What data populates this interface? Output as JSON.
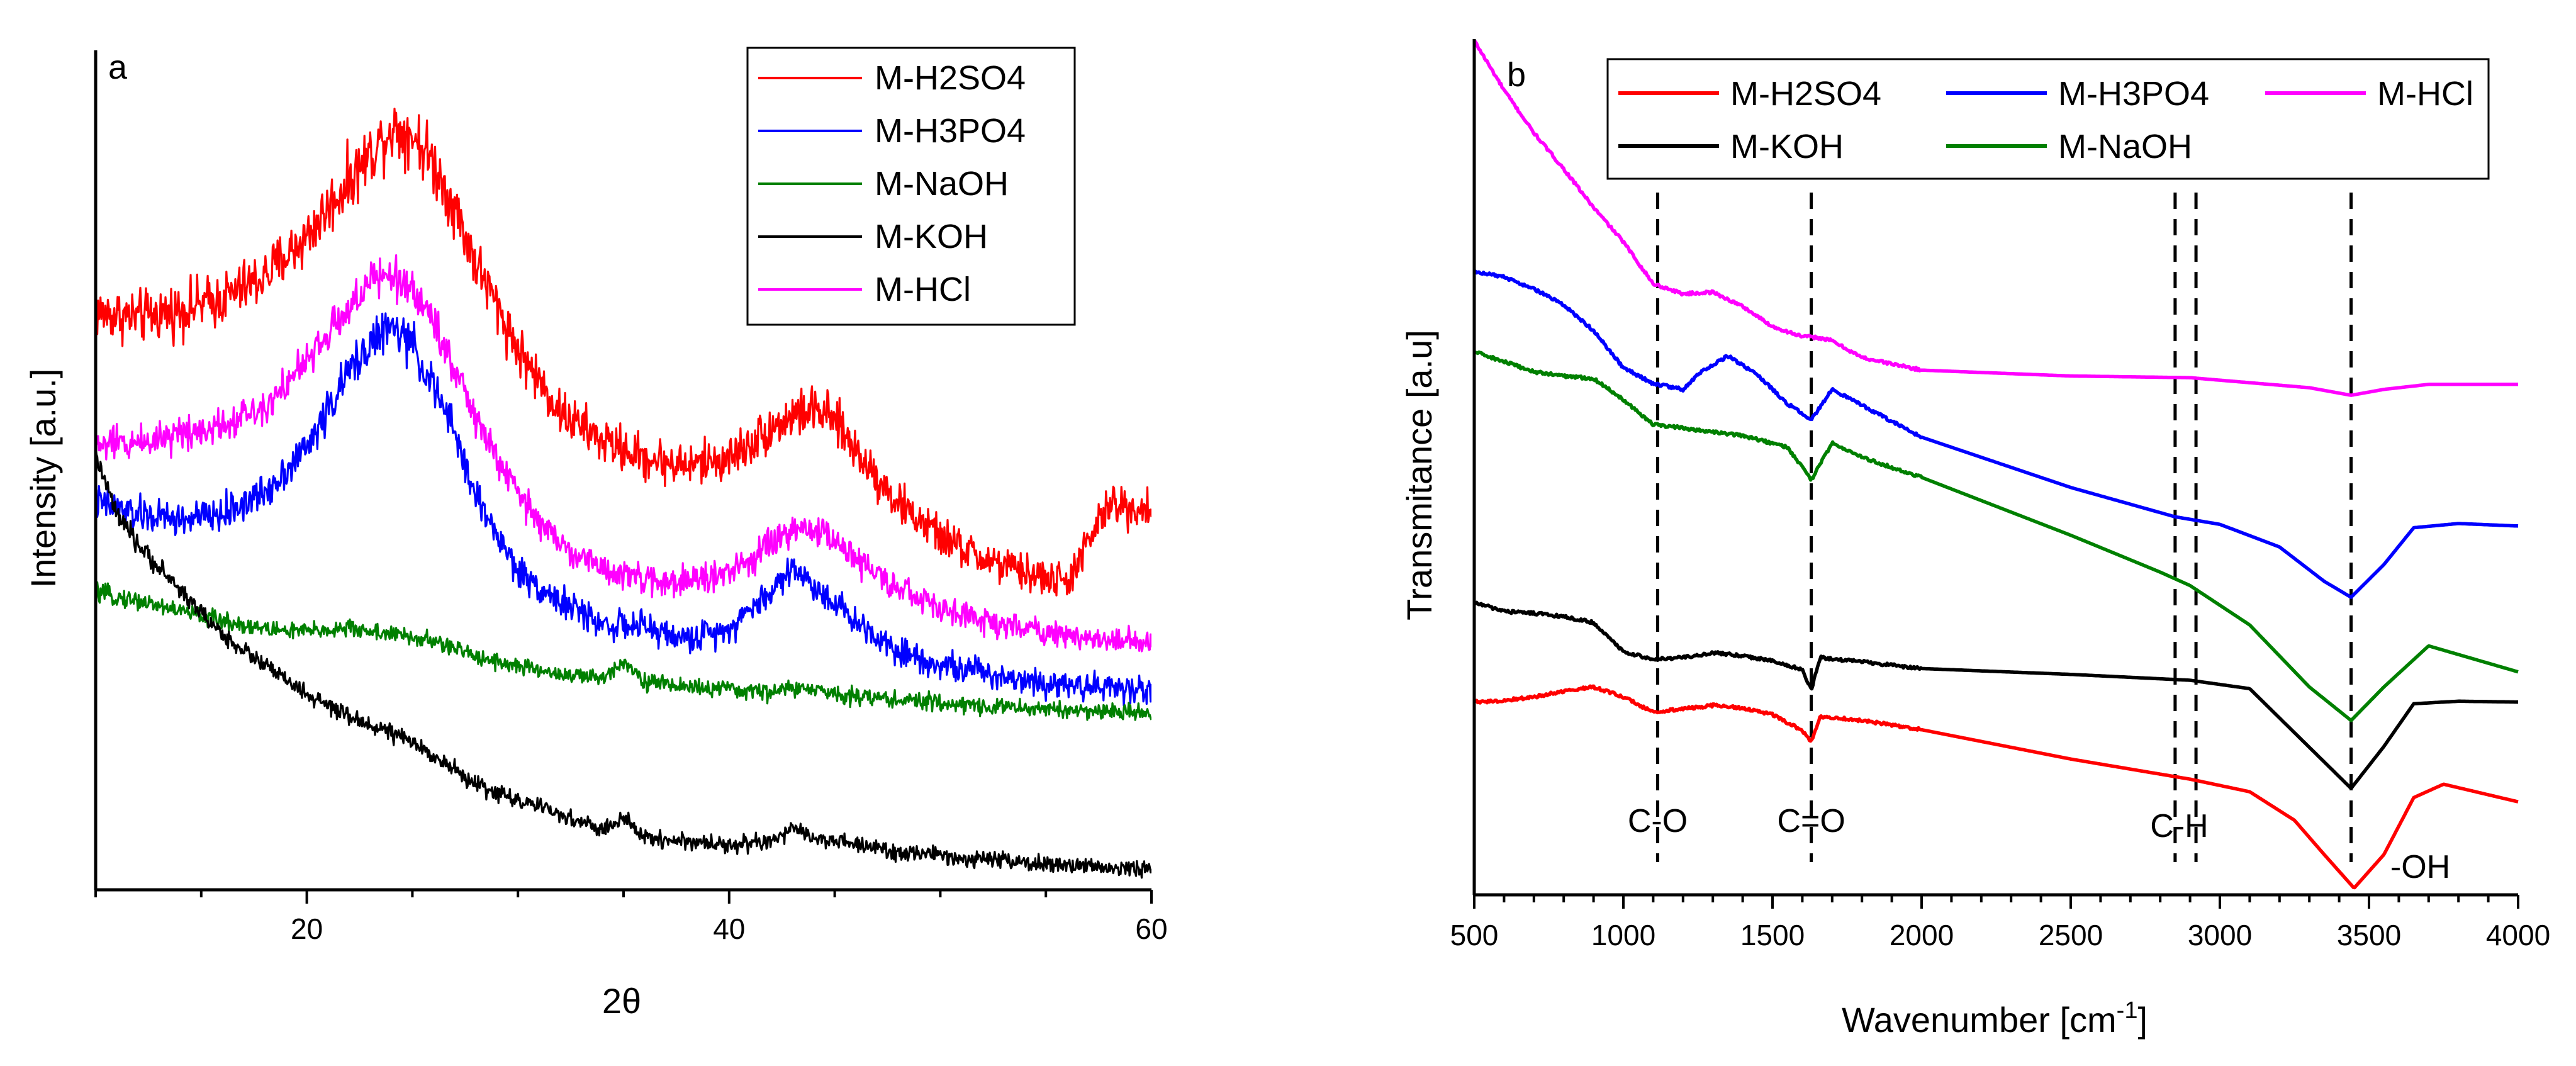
{
  "chart_data": [
    {
      "panel": "a",
      "type": "line",
      "xlabel": "2θ",
      "ylabel": "Intensity [a.u.]",
      "xlim": [
        10,
        60
      ],
      "ylim": [
        0,
        100
      ],
      "xticks": [
        "20",
        "40",
        "60"
      ],
      "yticks_shown": false,
      "legend": [
        "M-H2SO4",
        "M-H3PO4",
        "M-NaOH",
        "M-KOH",
        "M-HCl"
      ],
      "legend_position": "top-right",
      "noise": "high-frequency noise superimposed on each diffraction pattern",
      "series": [
        {
          "name": "M-H2SO4",
          "color": "#ff0000",
          "noise": 2.6,
          "x": [
            10,
            12,
            14,
            16,
            18,
            20,
            22,
            23,
            24,
            25,
            26,
            27,
            28,
            30,
            32,
            34,
            36,
            38,
            40,
            42,
            43,
            44,
            45,
            46,
            48,
            50,
            52,
            54,
            56,
            58,
            60
          ],
          "values": [
            69.3,
            68.7,
            69.6,
            70.9,
            73.6,
            78.4,
            85.1,
            88.3,
            91.4,
            90.8,
            87.2,
            81.9,
            75.3,
            64.9,
            57.3,
            53.9,
            51.8,
            50.9,
            51.8,
            55.4,
            56.9,
            57.6,
            56.3,
            52.8,
            46.4,
            42.4,
            39.7,
            38.0,
            36.9,
            46.2,
            45.7
          ]
        },
        {
          "name": "M-H3PO4",
          "color": "#0000ff",
          "noise": 2.2,
          "x": [
            10,
            12,
            14,
            16,
            18,
            20,
            22,
            23,
            24,
            25,
            26,
            27,
            28,
            30,
            32,
            34,
            36,
            38,
            40,
            42,
            43,
            44,
            45,
            46,
            48,
            50,
            52,
            54,
            56,
            58,
            60
          ],
          "values": [
            46.5,
            45.0,
            44.4,
            45.0,
            47.7,
            53.1,
            62.1,
            65.7,
            67.5,
            65.4,
            60.3,
            54.9,
            47.2,
            38.2,
            34.6,
            31.9,
            31.5,
            30.0,
            31.5,
            35.8,
            38.8,
            36.4,
            34.6,
            32.2,
            28.8,
            27.0,
            26.1,
            25.2,
            24.7,
            24.3,
            24.0
          ]
        },
        {
          "name": "M-NaOH",
          "color": "#008000",
          "noise": 1.3,
          "x": [
            10,
            12,
            14,
            16,
            18,
            20,
            22,
            24,
            26,
            28,
            30,
            32,
            34,
            35,
            36,
            38,
            40,
            42,
            43,
            44,
            46,
            48,
            50,
            52,
            54,
            56,
            58,
            60
          ],
          "values": [
            35.6,
            34.7,
            33.5,
            32.3,
            31.3,
            31.0,
            31.4,
            30.7,
            29.8,
            28.1,
            26.8,
            25.9,
            25.3,
            27.6,
            25.0,
            24.4,
            24.0,
            23.7,
            24.3,
            23.9,
            23.3,
            22.8,
            22.4,
            22.1,
            21.8,
            21.6,
            21.4,
            21.2
          ]
        },
        {
          "name": "M-KOH",
          "color": "#000000",
          "noise": 1.3,
          "x": [
            10,
            11,
            12,
            13,
            14,
            15,
            16,
            17,
            18,
            20,
            22,
            24,
            26,
            28,
            30,
            32,
            34,
            35,
            36,
            38,
            40,
            42,
            43,
            44,
            46,
            48,
            50,
            52,
            54,
            56,
            58,
            60
          ],
          "values": [
            52.2,
            45.0,
            41.4,
            38.7,
            36.0,
            33.3,
            30.6,
            28.8,
            27.0,
            23.4,
            20.7,
            18.9,
            16.2,
            12.6,
            10.8,
            9.0,
            7.2,
            8.5,
            6.3,
            5.8,
            5.4,
            5.8,
            7.2,
            6.3,
            5.4,
            4.5,
            4.1,
            3.6,
            3.2,
            2.9,
            2.7,
            2.5
          ]
        },
        {
          "name": "M-HCl",
          "color": "#ff00ff",
          "noise": 2.0,
          "x": [
            10,
            12,
            14,
            16,
            18,
            20,
            22,
            23,
            24,
            25,
            26,
            27,
            28,
            30,
            32,
            34,
            36,
            38,
            40,
            42,
            43,
            44,
            45,
            46,
            48,
            50,
            52,
            54,
            56,
            58,
            60
          ],
          "values": [
            53.4,
            53.7,
            54.9,
            55.8,
            58.2,
            63.3,
            69.9,
            72.9,
            73.8,
            72.0,
            68.4,
            62.7,
            56.4,
            47.4,
            41.4,
            38.6,
            37.1,
            37.0,
            38.0,
            41.3,
            43.1,
            43.3,
            42.1,
            39.8,
            36.0,
            33.8,
            32.3,
            31.4,
            30.6,
            30.0,
            29.4
          ]
        }
      ]
    },
    {
      "panel": "b",
      "type": "line",
      "xlabel": "Wavenumber [cm⁻¹]",
      "ylabel": "Transmitance [a.u]",
      "xlim": [
        500,
        4000
      ],
      "ylim": [
        0,
        100
      ],
      "xticks": [
        "500",
        "1000",
        "1500",
        "2000",
        "2500",
        "3000",
        "3500",
        "4000"
      ],
      "yticks_shown": false,
      "legend": [
        "M-H2SO4",
        "M-H3PO4",
        "M-HCl",
        "M-KOH",
        "M-NaOH"
      ],
      "legend_position": "top (two rows)",
      "series": [
        {
          "name": "M-HCl",
          "color": "#ff00ff",
          "x": [
            500,
            600,
            700,
            800,
            900,
            1000,
            1100,
            1200,
            1300,
            1400,
            1500,
            1600,
            1650,
            1700,
            1800,
            2000,
            2500,
            2900,
            3300,
            3440,
            3550,
            3700,
            4000
          ],
          "values": [
            101.9,
            96.0,
            90.9,
            86.6,
            82.0,
            77.9,
            72.9,
            71.7,
            71.9,
            70.2,
            67.8,
            66.6,
            66.5,
            66.1,
            64.1,
            62.6,
            61.9,
            61.7,
            60.5,
            59.6,
            60.3,
            60.9,
            60.9
          ]
        },
        {
          "name": "M-H3PO4",
          "color": "#0000ff",
          "x": [
            500,
            600,
            700,
            800,
            900,
            1000,
            1100,
            1200,
            1250,
            1350,
            1450,
            1550,
            1630,
            1700,
            2000,
            2500,
            2850,
            3000,
            3200,
            3350,
            3440,
            3550,
            3650,
            3800,
            4000
          ],
          "values": [
            74.4,
            73.7,
            72.3,
            70.4,
            67.3,
            62.9,
            61.0,
            60.3,
            62.1,
            64.3,
            62.0,
            58.6,
            56.7,
            60.3,
            54.6,
            48.6,
            45.1,
            44.2,
            41.5,
            37.4,
            35.5,
            39.4,
            43.8,
            44.3,
            44.0
          ]
        },
        {
          "name": "M-NaOH",
          "color": "#008000",
          "x": [
            500,
            600,
            700,
            800,
            900,
            1000,
            1100,
            1200,
            1300,
            1400,
            1550,
            1630,
            1700,
            1800,
            2000,
            2500,
            2800,
            2900,
            3100,
            3300,
            3440,
            3550,
            3700,
            4000
          ],
          "values": [
            64.8,
            63.6,
            62.4,
            61.9,
            61.6,
            59.1,
            56.1,
            55.7,
            55.2,
            54.8,
            53.4,
            49.5,
            53.9,
            52.2,
            49.8,
            42.9,
            38.5,
            36.9,
            32.2,
            24.8,
            20.8,
            24.8,
            29.7,
            26.6
          ]
        },
        {
          "name": "M-KOH",
          "color": "#000000",
          "x": [
            500,
            600,
            700,
            800,
            900,
            1000,
            1100,
            1200,
            1300,
            1400,
            1500,
            1600,
            1630,
            1660,
            1800,
            2000,
            2500,
            2900,
            3100,
            3300,
            3440,
            3550,
            3650,
            3800,
            4000
          ],
          "values": [
            34.9,
            33.8,
            33.6,
            33.2,
            32.5,
            29.0,
            28.1,
            28.3,
            28.9,
            28.5,
            27.9,
            26.9,
            24.4,
            28.3,
            27.8,
            27.0,
            26.3,
            25.6,
            24.6,
            17.6,
            12.7,
            17.7,
            22.8,
            23.1,
            23.0
          ]
        },
        {
          "name": "M-H2SO4",
          "color": "#ff0000",
          "x": [
            500,
            600,
            700,
            800,
            900,
            1000,
            1100,
            1200,
            1300,
            1400,
            1500,
            1600,
            1630,
            1660,
            1800,
            2000,
            2500,
            2900,
            3100,
            3250,
            3350,
            3450,
            3550,
            3650,
            3750,
            4000
          ],
          "values": [
            23.0,
            23.2,
            23.6,
            24.3,
            24.8,
            23.6,
            21.8,
            22.2,
            22.6,
            22.3,
            21.5,
            19.6,
            18.2,
            21.3,
            20.8,
            19.7,
            16.2,
            13.8,
            12.3,
            8.9,
            4.8,
            0.8,
            4.8,
            11.6,
            13.2,
            11.1
          ]
        }
      ],
      "reference_lines": [
        {
          "x": 1115,
          "label": "C-O"
        },
        {
          "x": 1630,
          "label": "C=O"
        },
        {
          "x": 2850,
          "label": "C-H"
        },
        {
          "x": 2920,
          "label": ""
        },
        {
          "x": 3440,
          "label": "-OH"
        }
      ]
    }
  ]
}
